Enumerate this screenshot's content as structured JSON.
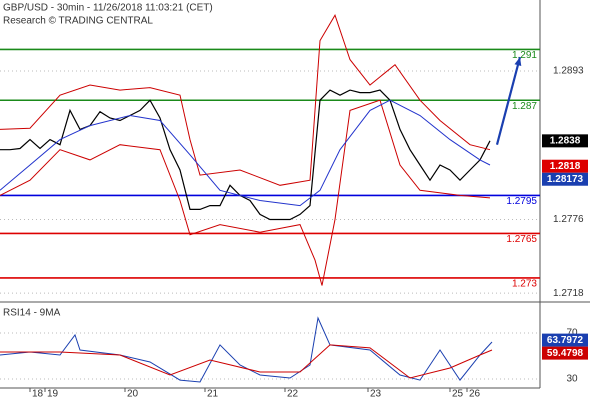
{
  "chart_data": {
    "type": "financial",
    "title": "GBP/USD - 30min - 11/26/2018 11:03:21 (CET)",
    "subtitle": "Research © TRADING CENTRAL",
    "xlim": [
      0,
      540
    ],
    "xticks": [
      {
        "value": 30,
        "label": "18"
      },
      {
        "value": 45,
        "label": "19"
      },
      {
        "value": 125,
        "label": "20"
      },
      {
        "value": 205,
        "label": "21"
      },
      {
        "value": 285,
        "label": "22"
      },
      {
        "value": 368,
        "label": "23"
      },
      {
        "value": 450,
        "label": "25"
      },
      {
        "value": 467,
        "label": "26"
      }
    ],
    "ylim": [
      1.2711,
      1.2949
    ],
    "yticks": [
      1.2893,
      1.2776,
      1.2718
    ],
    "grid": true,
    "series": [
      {
        "kind": "price",
        "color": "#000000",
        "x": [
          0,
          10,
          20,
          30,
          40,
          50,
          60,
          70,
          80,
          90,
          100,
          110,
          120,
          130,
          140,
          150,
          160,
          170,
          180,
          190,
          200,
          210,
          220,
          230,
          240,
          250,
          260,
          270,
          280,
          290,
          300,
          310,
          320,
          330,
          340,
          350,
          360,
          370,
          380,
          390,
          400,
          410,
          420,
          430,
          440,
          450,
          460,
          470,
          480,
          490
        ],
        "values": [
          1.2831,
          1.2831,
          1.2832,
          1.2839,
          1.2832,
          1.2839,
          1.2835,
          1.2862,
          1.2847,
          1.285,
          1.2861,
          1.2856,
          1.2854,
          1.2858,
          1.2862,
          1.287,
          1.2856,
          1.2831,
          1.2815,
          1.2784,
          1.2784,
          1.2787,
          1.2787,
          1.2803,
          1.2795,
          1.2791,
          1.278,
          1.2776,
          1.2776,
          1.2776,
          1.278,
          1.2787,
          1.287,
          1.2878,
          1.2874,
          1.2878,
          1.2876,
          1.2876,
          1.2878,
          1.287,
          1.2847,
          1.2831,
          1.2819,
          1.2807,
          1.2819,
          1.2815,
          1.2807,
          1.2815,
          1.2823,
          1.2838
        ]
      },
      {
        "kind": "band",
        "color": "#cc0000",
        "x": [
          0,
          30,
          60,
          90,
          120,
          150,
          180,
          190,
          200,
          240,
          280,
          310,
          320,
          335,
          350,
          370,
          395,
          420,
          440,
          470,
          490
        ],
        "values": [
          1.2847,
          1.2848,
          1.2874,
          1.2882,
          1.2878,
          1.288,
          1.2874,
          1.2839,
          1.2811,
          1.2815,
          1.2803,
          1.2807,
          1.2917,
          1.2937,
          1.2902,
          1.2882,
          1.2898,
          1.287,
          1.2854,
          1.2835,
          1.2831
        ]
      },
      {
        "kind": "band",
        "color": "#cc0000",
        "x": [
          0,
          30,
          60,
          90,
          120,
          160,
          180,
          190,
          220,
          260,
          300,
          315,
          322,
          335,
          350,
          380,
          400,
          420,
          460,
          490
        ],
        "values": [
          1.2795,
          1.2807,
          1.2831,
          1.2823,
          1.2835,
          1.2831,
          1.2791,
          1.2764,
          1.2772,
          1.2766,
          1.2772,
          1.2744,
          1.2724,
          1.2776,
          1.2862,
          1.287,
          1.2819,
          1.2799,
          1.2795,
          1.2793
        ]
      },
      {
        "kind": "ma",
        "color": "#2233cc",
        "x": [
          0,
          30,
          60,
          90,
          130,
          160,
          190,
          220,
          260,
          300,
          320,
          340,
          370,
          390,
          420,
          450,
          480,
          490
        ],
        "values": [
          1.2799,
          1.2819,
          1.2839,
          1.285,
          1.2858,
          1.2854,
          1.2827,
          1.2799,
          1.2791,
          1.2787,
          1.2799,
          1.2831,
          1.2862,
          1.287,
          1.2858,
          1.2839,
          1.2823,
          1.2819
        ]
      },
      {
        "kind": "forecast",
        "color": "#1a3fb0",
        "x": [
          497,
          520
        ],
        "values": [
          1.2835,
          1.2904
        ]
      }
    ],
    "levels": [
      {
        "value": 1.291,
        "color": "#1a8a1a"
      },
      {
        "value": 1.287,
        "color": "#1a8a1a"
      },
      {
        "value": 1.2795,
        "color": "#0000dd"
      },
      {
        "value": 1.2765,
        "color": "#dd0000"
      },
      {
        "value": 1.273,
        "color": "#dd0000"
      }
    ],
    "markers": [
      {
        "value": 1.2838,
        "color": "#000000"
      },
      {
        "value": 1.2818,
        "color": "#dd0000"
      },
      {
        "value": 1.28173,
        "color": "#1a3fb0"
      }
    ],
    "rsi": {
      "title": "RSI14 - 9MA",
      "ylim": [
        22.2,
        94.3
      ],
      "yticks": [
        70,
        30
      ],
      "series": [
        {
          "color": "#1a3fb0",
          "x": [
            0,
            30,
            60,
            75,
            80,
            120,
            150,
            180,
            200,
            220,
            240,
            260,
            290,
            310,
            318,
            330,
            370,
            400,
            420,
            440,
            460,
            480,
            492
          ],
          "values": [
            50.9,
            53.5,
            50.9,
            68.3,
            55.2,
            50.9,
            44.8,
            29.1,
            27.4,
            59.6,
            42.2,
            33.5,
            30.9,
            42.2,
            83,
            59.6,
            55.2,
            33.5,
            29.1,
            55.2,
            29.1,
            50.9,
            62.2
          ]
        },
        {
          "color": "#cc0000",
          "x": [
            0,
            60,
            120,
            170,
            210,
            260,
            300,
            330,
            370,
            410,
            450,
            480,
            492
          ],
          "values": [
            53.5,
            53.5,
            50.9,
            33.5,
            46.5,
            36.1,
            36.1,
            59.6,
            57,
            30.9,
            39.6,
            50.9,
            55.2
          ]
        }
      ],
      "markers": [
        {
          "value": 63.7972,
          "color": "#1a3fb0"
        },
        {
          "value": 59.4798,
          "color": "#cc0000"
        }
      ]
    }
  }
}
